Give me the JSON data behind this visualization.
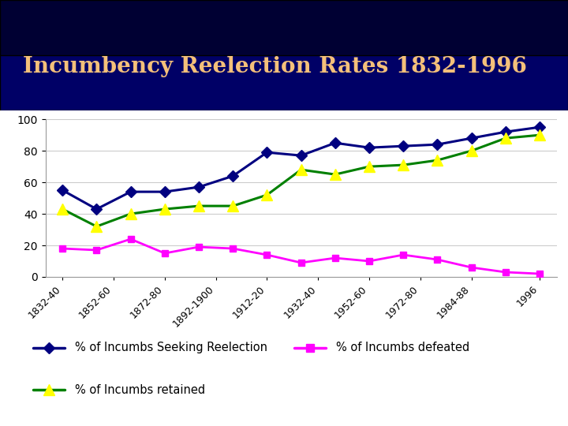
{
  "title": "Incumbency Reelection Rates 1832-1996",
  "title_color": "#F4C07A",
  "header_bg_top": "#000080",
  "header_bg_bottom": "#000033",
  "chart_bg_color": "#ffffff",
  "seeking_y": [
    55,
    43,
    54,
    54,
    57,
    64,
    79,
    77,
    85,
    82,
    83,
    84,
    88,
    92,
    95
  ],
  "defeated_y": [
    18,
    17,
    24,
    15,
    19,
    18,
    14,
    9,
    12,
    10,
    14,
    11,
    6,
    3,
    2
  ],
  "retained_y": [
    43,
    32,
    40,
    43,
    45,
    45,
    52,
    68,
    65,
    70,
    71,
    74,
    80,
    88,
    90
  ],
  "n_points": 15,
  "tick_labels": [
    "1832-40",
    "1852-60",
    "1872-80",
    "1892-1900",
    "1912-20",
    "1932-40",
    "1952-60",
    "1972-80",
    "1984-88",
    "1996"
  ],
  "tick_positions": [
    0,
    1.5,
    3,
    4.5,
    6,
    7.5,
    9,
    10.5,
    12,
    14
  ],
  "navy": "#000080",
  "magenta": "#FF00FF",
  "green": "#008000",
  "yellow": "#FFFF00",
  "legend1": "% of Incumbs Seeking Reelection",
  "legend2": "% of Incumbs defeated",
  "legend3": "% of Incumbs retained",
  "arc_color": "#87CEEB"
}
